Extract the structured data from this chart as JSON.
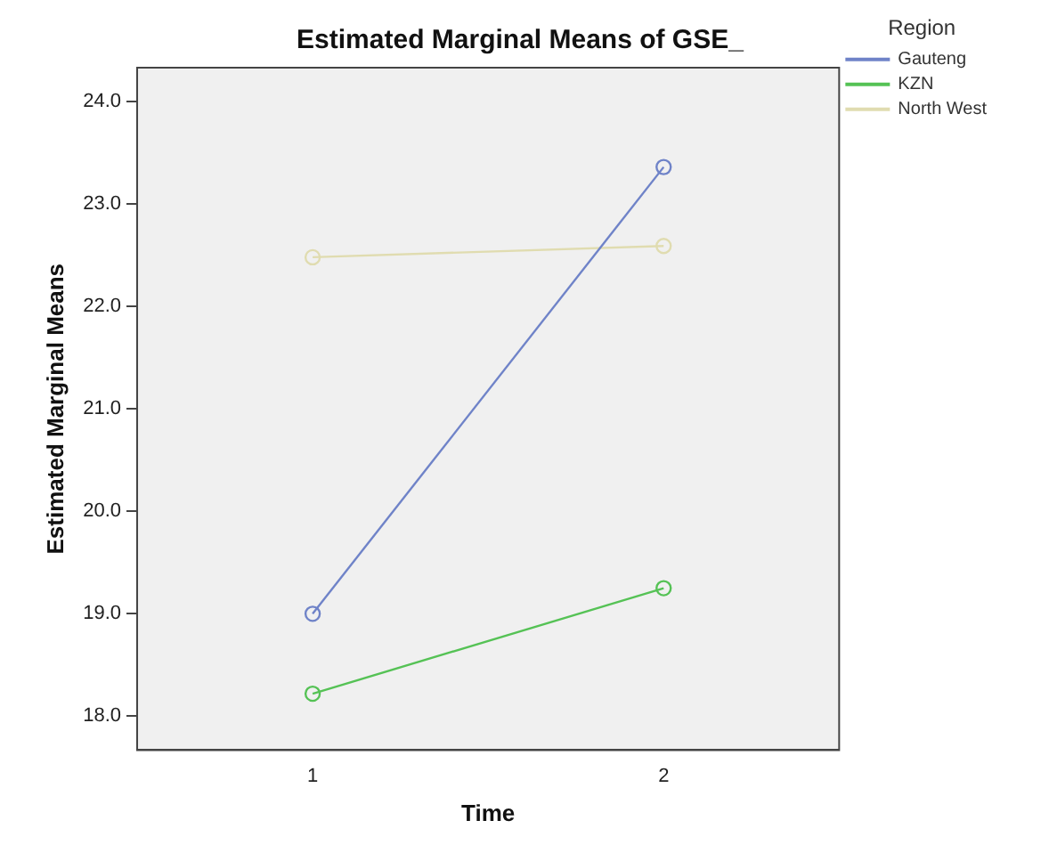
{
  "chart_data": {
    "type": "line",
    "title": "Estimated Marginal Means of GSE_",
    "xlabel": "Time",
    "ylabel": "Estimated Marginal Means",
    "legend_title": "Region",
    "categories": [
      "1",
      "2"
    ],
    "series": [
      {
        "name": "Gauteng",
        "color": "#6f83c8",
        "values": [
          19.0,
          23.36
        ]
      },
      {
        "name": "KZN",
        "color": "#55c255",
        "values": [
          18.22,
          19.25
        ]
      },
      {
        "name": "North West",
        "color": "#e0dcb0",
        "values": [
          22.48,
          22.59
        ]
      }
    ],
    "ylim": [
      17.67,
      24.33
    ],
    "yticks": [
      {
        "value": 18,
        "label": "18.0"
      },
      {
        "value": 19,
        "label": "19.0"
      },
      {
        "value": 20,
        "label": "20.0"
      },
      {
        "value": 21,
        "label": "21.0"
      },
      {
        "value": 22,
        "label": "22.0"
      },
      {
        "value": 23,
        "label": "23.0"
      },
      {
        "value": 24,
        "label": "24.0"
      }
    ],
    "grid": false,
    "legend": "right",
    "marker": "circle",
    "line_style": "solid"
  }
}
